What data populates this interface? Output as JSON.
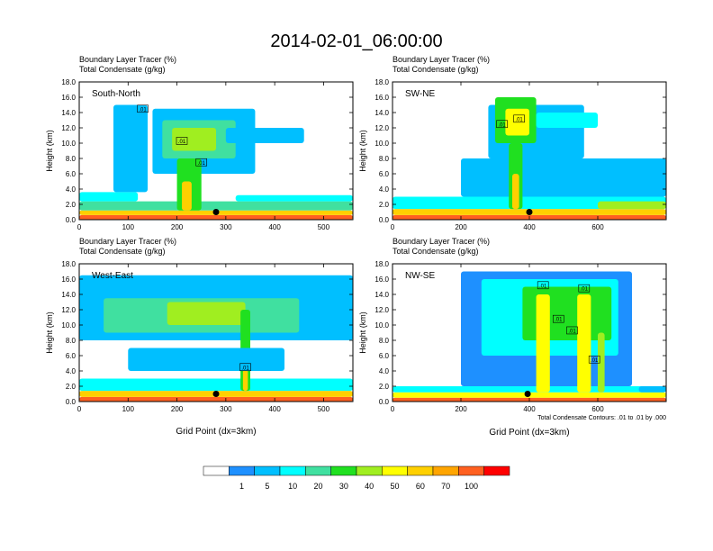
{
  "title": "2014-02-01_06:00:00",
  "chart_data": [
    {
      "type": "heatmap",
      "panel_label": "South-North",
      "subtitle_line1": "Boundary Layer Tracer   (%)",
      "subtitle_line2": "Total Condensate   (g/kg)",
      "xlabel": "",
      "ylabel": "Height (km)",
      "xlim": [
        0,
        560
      ],
      "ylim": [
        0,
        18
      ],
      "xticks": [
        "0",
        "100",
        "200",
        "300",
        "400",
        "500"
      ],
      "yticks": [
        "0.0",
        "2.0",
        "4.0",
        "6.0",
        "8.0",
        "10.0",
        "12.0",
        "14.0",
        "16.0",
        "18.0"
      ],
      "marker": {
        "x": 280,
        "y": 1.0
      },
      "contour_labels": [
        {
          "text": ".01",
          "x": 130,
          "y": 14.5
        },
        {
          "text": ".01",
          "x": 210,
          "y": 10.3
        },
        {
          "text": ".01",
          "x": 250,
          "y": 7.5
        }
      ],
      "cells": [
        {
          "x0": 0,
          "x1": 560,
          "y0": 0,
          "y1": 0.6,
          "level": 10
        },
        {
          "x0": 0,
          "x1": 560,
          "y0": 0.6,
          "y1": 1.2,
          "level": 8
        },
        {
          "x0": 0,
          "x1": 560,
          "y0": 1.2,
          "y1": 2.4,
          "level": 4
        },
        {
          "x0": 0,
          "x1": 120,
          "y0": 2.4,
          "y1": 3.6,
          "level": 3
        },
        {
          "x0": 320,
          "x1": 560,
          "y0": 2.4,
          "y1": 3.2,
          "level": 3
        },
        {
          "x0": 70,
          "x1": 140,
          "y0": 3.6,
          "y1": 15.0,
          "level": 2
        },
        {
          "x0": 150,
          "x1": 360,
          "y0": 6.0,
          "y1": 14.5,
          "level": 2
        },
        {
          "x0": 170,
          "x1": 320,
          "y0": 8.0,
          "y1": 13.0,
          "level": 4
        },
        {
          "x0": 190,
          "x1": 280,
          "y0": 9.0,
          "y1": 12.0,
          "level": 6
        },
        {
          "x0": 200,
          "x1": 250,
          "y0": 1.2,
          "y1": 8.0,
          "level": 5
        },
        {
          "x0": 210,
          "x1": 230,
          "y0": 1.2,
          "y1": 5.0,
          "level": 8
        },
        {
          "x0": 300,
          "x1": 460,
          "y0": 10.0,
          "y1": 12.0,
          "level": 2
        }
      ]
    },
    {
      "type": "heatmap",
      "panel_label": "SW-NE",
      "subtitle_line1": "Boundary Layer Tracer   (%)",
      "subtitle_line2": "Total Condensate   (g/kg)",
      "xlabel": "",
      "ylabel": "Height (km)",
      "xlim": [
        0,
        800
      ],
      "ylim": [
        0,
        18
      ],
      "xticks": [
        "0",
        "200",
        "400",
        "600"
      ],
      "yticks": [
        "0.0",
        "2.0",
        "4.0",
        "6.0",
        "8.0",
        "10.0",
        "12.0",
        "14.0",
        "16.0",
        "18.0"
      ],
      "marker": {
        "x": 400,
        "y": 1.0
      },
      "contour_labels": [
        {
          "text": ".01",
          "x": 320,
          "y": 12.5
        },
        {
          "text": ".01",
          "x": 370,
          "y": 13.2
        }
      ],
      "cells": [
        {
          "x0": 0,
          "x1": 800,
          "y0": 0,
          "y1": 0.6,
          "level": 10
        },
        {
          "x0": 0,
          "x1": 800,
          "y0": 0.6,
          "y1": 1.4,
          "level": 8
        },
        {
          "x0": 0,
          "x1": 800,
          "y0": 1.4,
          "y1": 3.0,
          "level": 3
        },
        {
          "x0": 200,
          "x1": 800,
          "y0": 3.0,
          "y1": 8.0,
          "level": 2
        },
        {
          "x0": 280,
          "x1": 560,
          "y0": 8.0,
          "y1": 15.0,
          "level": 2
        },
        {
          "x0": 300,
          "x1": 420,
          "y0": 10.0,
          "y1": 16.0,
          "level": 5
        },
        {
          "x0": 330,
          "x1": 400,
          "y0": 11.0,
          "y1": 14.5,
          "level": 7
        },
        {
          "x0": 340,
          "x1": 380,
          "y0": 1.4,
          "y1": 10.0,
          "level": 5
        },
        {
          "x0": 350,
          "x1": 370,
          "y0": 1.4,
          "y1": 6.0,
          "level": 8
        },
        {
          "x0": 420,
          "x1": 600,
          "y0": 12.0,
          "y1": 14.0,
          "level": 3
        },
        {
          "x0": 600,
          "x1": 800,
          "y0": 1.4,
          "y1": 2.4,
          "level": 6
        }
      ]
    },
    {
      "type": "heatmap",
      "panel_label": "West-East",
      "subtitle_line1": "Boundary Layer Tracer   (%)",
      "subtitle_line2": "Total Condensate   (g/kg)",
      "xlabel": "Grid Point (dx=3km)",
      "ylabel": "Height (km)",
      "xlim": [
        0,
        560
      ],
      "ylim": [
        0,
        18
      ],
      "xticks": [
        "0",
        "100",
        "200",
        "300",
        "400",
        "500"
      ],
      "yticks": [
        "0.0",
        "2.0",
        "4.0",
        "6.0",
        "8.0",
        "10.0",
        "12.0",
        "14.0",
        "16.0",
        "18.0"
      ],
      "marker": {
        "x": 280,
        "y": 1.0
      },
      "contour_labels": [
        {
          "text": ".01",
          "x": 340,
          "y": 4.5
        }
      ],
      "cells": [
        {
          "x0": 0,
          "x1": 560,
          "y0": 0,
          "y1": 0.6,
          "level": 10
        },
        {
          "x0": 0,
          "x1": 560,
          "y0": 0.6,
          "y1": 1.4,
          "level": 8
        },
        {
          "x0": 0,
          "x1": 560,
          "y0": 1.4,
          "y1": 3.0,
          "level": 3
        },
        {
          "x0": 0,
          "x1": 560,
          "y0": 8.0,
          "y1": 16.5,
          "level": 2
        },
        {
          "x0": 50,
          "x1": 450,
          "y0": 9.0,
          "y1": 13.5,
          "level": 4
        },
        {
          "x0": 180,
          "x1": 340,
          "y0": 10.0,
          "y1": 13.0,
          "level": 6
        },
        {
          "x0": 330,
          "x1": 350,
          "y0": 1.4,
          "y1": 12.0,
          "level": 5
        },
        {
          "x0": 335,
          "x1": 345,
          "y0": 1.4,
          "y1": 5.0,
          "level": 8
        },
        {
          "x0": 100,
          "x1": 420,
          "y0": 4.0,
          "y1": 7.0,
          "level": 2
        }
      ]
    },
    {
      "type": "heatmap",
      "panel_label": "NW-SE",
      "subtitle_line1": "Boundary Layer Tracer   (%)",
      "subtitle_line2": "Total Condensate   (g/kg)",
      "xlabel": "Grid Point (dx=3km)",
      "ylabel": "Height (km)",
      "footnote": "Total Condensate Contours: .01 to .01 by .000",
      "xlim": [
        0,
        800
      ],
      "ylim": [
        0,
        18
      ],
      "xticks": [
        "0",
        "200",
        "400",
        "600"
      ],
      "yticks": [
        "0.0",
        "2.0",
        "4.0",
        "6.0",
        "8.0",
        "10.0",
        "12.0",
        "14.0",
        "16.0",
        "18.0"
      ],
      "marker": {
        "x": 395,
        "y": 1.0
      },
      "contour_labels": [
        {
          "text": ".01",
          "x": 440,
          "y": 15.2
        },
        {
          "text": ".01",
          "x": 560,
          "y": 14.8
        },
        {
          "text": ".01",
          "x": 485,
          "y": 10.8
        },
        {
          "text": ".01",
          "x": 525,
          "y": 9.3
        },
        {
          "text": ".01",
          "x": 590,
          "y": 5.5
        }
      ],
      "cells": [
        {
          "x0": 0,
          "x1": 800,
          "y0": 0,
          "y1": 0.5,
          "level": 10
        },
        {
          "x0": 0,
          "x1": 800,
          "y0": 0.5,
          "y1": 1.2,
          "level": 7
        },
        {
          "x0": 0,
          "x1": 800,
          "y0": 1.2,
          "y1": 2.0,
          "level": 3
        },
        {
          "x0": 200,
          "x1": 700,
          "y0": 2.0,
          "y1": 17.0,
          "level": 1
        },
        {
          "x0": 260,
          "x1": 660,
          "y0": 6.0,
          "y1": 16.0,
          "level": 3
        },
        {
          "x0": 380,
          "x1": 640,
          "y0": 8.0,
          "y1": 15.0,
          "level": 5
        },
        {
          "x0": 420,
          "x1": 460,
          "y0": 1.2,
          "y1": 14.0,
          "level": 7
        },
        {
          "x0": 540,
          "x1": 580,
          "y0": 1.2,
          "y1": 14.0,
          "level": 7
        },
        {
          "x0": 600,
          "x1": 620,
          "y0": 1.2,
          "y1": 9.0,
          "level": 6
        },
        {
          "x0": 720,
          "x1": 800,
          "y0": 1.2,
          "y1": 2.0,
          "level": 2
        }
      ]
    }
  ],
  "colorbar": {
    "labels": [
      "1",
      "5",
      "10",
      "20",
      "30",
      "40",
      "50",
      "60",
      "70",
      "100"
    ],
    "colors": [
      "#ffffff",
      "#1e90ff",
      "#00bfff",
      "#00ffff",
      "#40e0a0",
      "#20e020",
      "#a0ee20",
      "#ffff00",
      "#ffd000",
      "#ffa500",
      "#ff6020",
      "#ff0000"
    ]
  }
}
